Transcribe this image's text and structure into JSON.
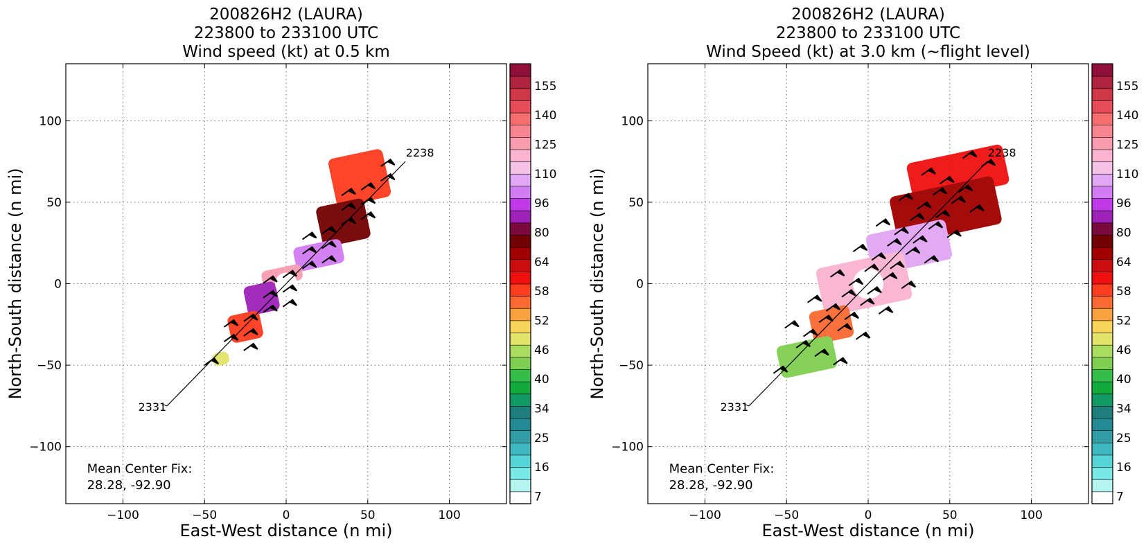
{
  "chart_data": [
    {
      "type": "heatmap",
      "title_lines": [
        "200826H2 (LAURA)",
        "223800 to 233100 UTC",
        "Wind speed (kt) at 0.5 km"
      ],
      "xlabel": "East-West distance (n mi)",
      "ylabel": "North-South distance (n mi)",
      "xlim": [
        -135,
        135
      ],
      "ylim": [
        -135,
        135
      ],
      "xticks": [
        -100,
        -50,
        0,
        50,
        100
      ],
      "yticks": [
        -100,
        -50,
        0,
        50,
        100
      ],
      "xtick_labels": [
        "−100",
        "−50",
        "0",
        "50",
        "100"
      ],
      "ytick_labels": [
        "−100",
        "−50",
        "0",
        "50",
        "100"
      ],
      "grid": true,
      "colorbar": {
        "levels": [
          7,
          10,
          13,
          16,
          19,
          22,
          25,
          28,
          31,
          34,
          37,
          40,
          43,
          46,
          49,
          52,
          55,
          58,
          61,
          64,
          72,
          80,
          88,
          96,
          103,
          110,
          118,
          125,
          132,
          140,
          148,
          155,
          162
        ],
        "tick_labels": [
          "7",
          "16",
          "25",
          "34",
          "40",
          "46",
          "52",
          "58",
          "64",
          "80",
          "96",
          "110",
          "125",
          "140",
          "155"
        ],
        "tick_level_index": [
          0,
          3,
          6,
          9,
          11,
          13,
          15,
          17,
          19,
          21,
          23,
          25,
          27,
          29,
          31
        ],
        "colors": [
          "#ffffff",
          "#b4f5f0",
          "#78e8e6",
          "#55d5d8",
          "#42b8c0",
          "#329ca5",
          "#238994",
          "#1f7f7c",
          "#119a63",
          "#12aa3b",
          "#35bd4a",
          "#7fcf52",
          "#a9dc5f",
          "#e2e46a",
          "#f9d45a",
          "#f8a13e",
          "#fa6a32",
          "#fe3c1e",
          "#f01010",
          "#cc0d0d",
          "#a00000",
          "#720000",
          "#7a0a3c",
          "#9e22b8",
          "#c03ae9",
          "#d27cf3",
          "#e1a6f4",
          "#f3c2e6",
          "#fab4d2",
          "#f99cb0",
          "#f88590",
          "#f56e70",
          "#e64c58",
          "#d03848",
          "#b02440",
          "#8f1038"
        ]
      },
      "annotations": [
        {
          "text": "2238",
          "x": 82,
          "y": 78
        },
        {
          "text": "2331",
          "x": -82,
          "y": -78
        },
        {
          "text": "Mean Center Fix:",
          "x": -122,
          "y": -116
        },
        {
          "text": "28.28, -92.90",
          "x": -122,
          "y": -126
        }
      ],
      "track": {
        "start": [
          -73,
          -75
        ],
        "end": [
          73,
          75
        ]
      },
      "swath_regions": [
        {
          "x": [
            28,
            62
          ],
          "y": [
            50,
            80
          ],
          "kt": 60
        },
        {
          "x": [
            20,
            50
          ],
          "y": [
            25,
            50
          ],
          "kt": 80
        },
        {
          "x": [
            5,
            35
          ],
          "y": [
            10,
            25
          ],
          "kt": 110
        },
        {
          "x": [
            -15,
            10
          ],
          "y": [
            0,
            10
          ],
          "kt": 140
        },
        {
          "x": [
            -25,
            -5
          ],
          "y": [
            -18,
            0
          ],
          "kt": 96
        },
        {
          "x": [
            -35,
            -15
          ],
          "y": [
            -35,
            -18
          ],
          "kt": 58
        },
        {
          "x": [
            -45,
            -35
          ],
          "y": [
            -50,
            -42
          ],
          "kt": 46
        }
      ]
    },
    {
      "type": "heatmap",
      "title_lines": [
        "200826H2 (LAURA)",
        "223800 to 233100 UTC",
        "Wind Speed (kt) at 3.0 km (~flight level)"
      ],
      "xlabel": "East-West distance (n mi)",
      "ylabel": "North-South distance (n mi)",
      "xlim": [
        -135,
        135
      ],
      "ylim": [
        -135,
        135
      ],
      "xticks": [
        -100,
        -50,
        0,
        50,
        100
      ],
      "yticks": [
        -100,
        -50,
        0,
        50,
        100
      ],
      "xtick_labels": [
        "−100",
        "−50",
        "0",
        "50",
        "100"
      ],
      "ytick_labels": [
        "−100",
        "−50",
        "0",
        "50",
        "100"
      ],
      "grid": true,
      "colorbar": {
        "levels": [
          7,
          10,
          13,
          16,
          19,
          22,
          25,
          28,
          31,
          34,
          37,
          40,
          43,
          46,
          49,
          52,
          55,
          58,
          61,
          64,
          72,
          80,
          88,
          96,
          103,
          110,
          118,
          125,
          132,
          140,
          148,
          155,
          162
        ],
        "tick_labels": [
          "7",
          "16",
          "25",
          "34",
          "40",
          "46",
          "52",
          "58",
          "64",
          "80",
          "96",
          "110",
          "125",
          "140",
          "155"
        ],
        "tick_level_index": [
          0,
          3,
          6,
          9,
          11,
          13,
          15,
          17,
          19,
          21,
          23,
          25,
          27,
          29,
          31
        ],
        "colors": [
          "#ffffff",
          "#b4f5f0",
          "#78e8e6",
          "#55d5d8",
          "#42b8c0",
          "#329ca5",
          "#238994",
          "#1f7f7c",
          "#119a63",
          "#12aa3b",
          "#35bd4a",
          "#7fcf52",
          "#a9dc5f",
          "#e2e46a",
          "#f9d45a",
          "#f8a13e",
          "#fa6a32",
          "#fe3c1e",
          "#f01010",
          "#cc0d0d",
          "#a00000",
          "#720000",
          "#7a0a3c",
          "#9e22b8",
          "#c03ae9",
          "#d27cf3",
          "#e1a6f4",
          "#f3c2e6",
          "#fab4d2",
          "#f99cb0",
          "#f88590",
          "#f56e70",
          "#e64c58",
          "#d03848",
          "#b02440",
          "#8f1038"
        ]
      },
      "annotations": [
        {
          "text": "2238",
          "x": 82,
          "y": 78
        },
        {
          "text": "2331",
          "x": -82,
          "y": -78
        },
        {
          "text": "Mean Center Fix:",
          "x": -122,
          "y": -116
        },
        {
          "text": "28.28, -92.90",
          "x": -122,
          "y": -126
        }
      ],
      "track": {
        "start": [
          -73,
          -75
        ],
        "end": [
          73,
          75
        ]
      },
      "swath_regions": [
        {
          "x": [
            25,
            85
          ],
          "y": [
            55,
            80
          ],
          "kt": 62
        },
        {
          "x": [
            15,
            80
          ],
          "y": [
            30,
            60
          ],
          "kt": 76
        },
        {
          "x": [
            0,
            50
          ],
          "y": [
            10,
            35
          ],
          "kt": 118
        },
        {
          "x": [
            -30,
            25
          ],
          "y": [
            -15,
            15
          ],
          "kt": 132
        },
        {
          "x": [
            -35,
            -10
          ],
          "y": [
            -35,
            -15
          ],
          "kt": 56
        },
        {
          "x": [
            -55,
            -20
          ],
          "y": [
            -55,
            -35
          ],
          "kt": 40
        }
      ]
    }
  ]
}
